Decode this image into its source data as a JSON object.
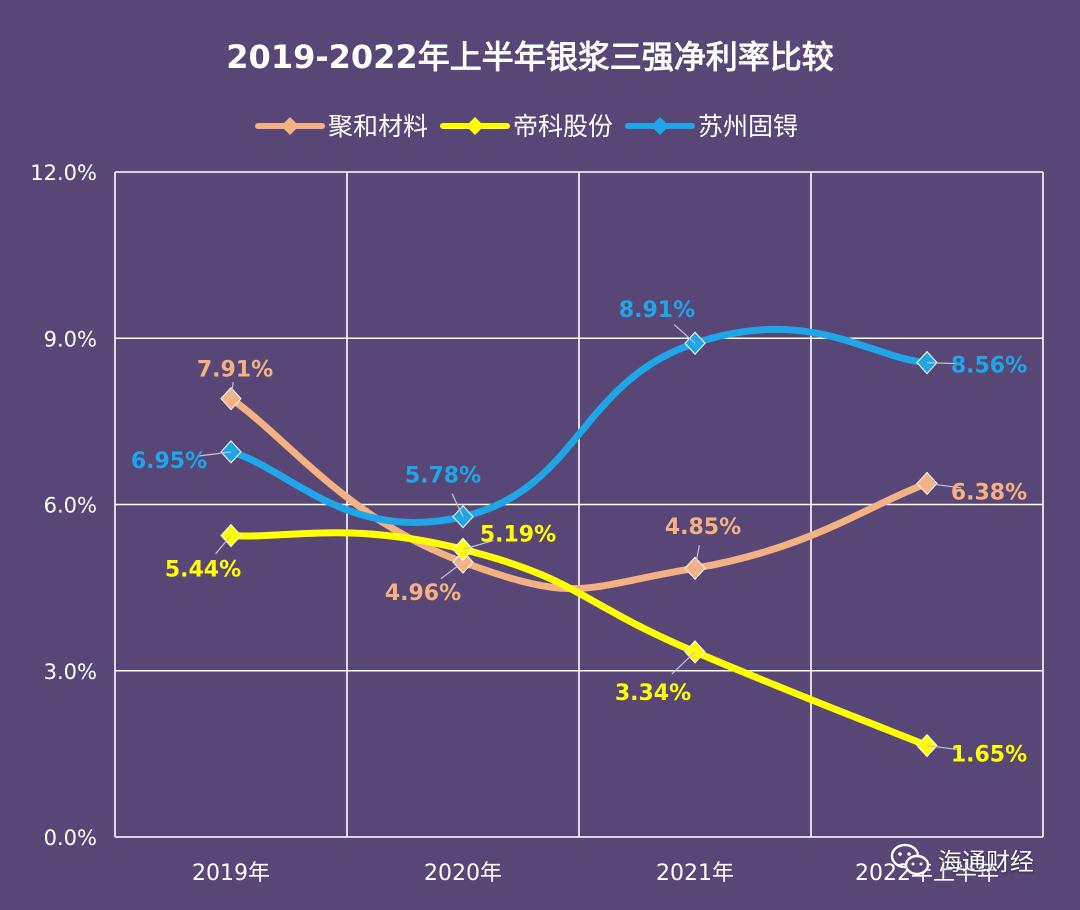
{
  "chart_data": {
    "type": "line",
    "title": "2019-2022年上半年银浆三强净利率比较",
    "categories": [
      "2019年",
      "2020年",
      "2021年",
      "2022年上半年"
    ],
    "ylim": [
      0,
      12
    ],
    "yticks": [
      "0.0%",
      "3.0%",
      "6.0%",
      "9.0%",
      "12.0%"
    ],
    "grid": true,
    "legend_position": "top",
    "series": [
      {
        "name": "聚和材料",
        "color": "#F4B183",
        "values": [
          7.91,
          4.96,
          4.85,
          6.38
        ],
        "labels": [
          "7.91%",
          "4.96%",
          "4.85%",
          "6.38%"
        ]
      },
      {
        "name": "帝科股份",
        "color": "#FFFF00",
        "values": [
          5.44,
          5.19,
          3.34,
          1.65
        ],
        "labels": [
          "5.44%",
          "5.19%",
          "3.34%",
          "1.65%"
        ]
      },
      {
        "name": "苏州固锝",
        "color": "#1FA6E8",
        "values": [
          6.95,
          5.78,
          8.91,
          8.56
        ],
        "labels": [
          "6.95%",
          "5.78%",
          "8.91%",
          "8.56%"
        ]
      }
    ]
  },
  "watermark": {
    "text": "海通财经",
    "icon": "wechat-icon"
  }
}
